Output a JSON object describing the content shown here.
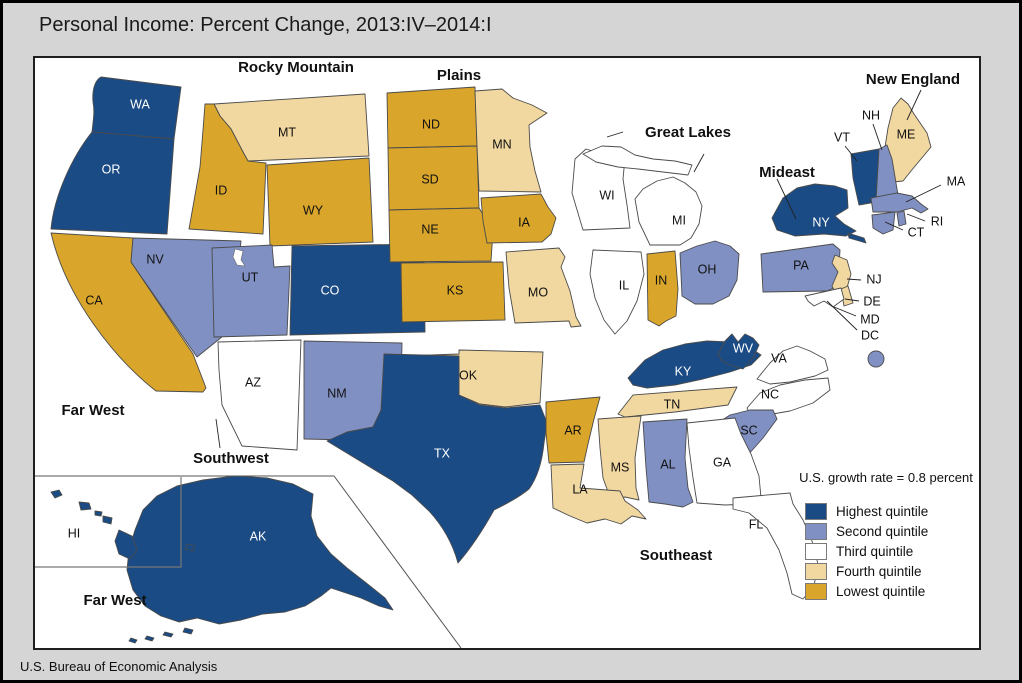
{
  "title": "Personal Income: Percent Change, 2013:IV–2014:I",
  "source": "U.S. Bureau of Economic Analysis",
  "legend": {
    "note": "U.S. growth rate = 0.8 percent",
    "items": [
      {
        "label": "Highest quintile",
        "quintile": "highest",
        "color": "#1A4B85"
      },
      {
        "label": "Second quintile",
        "quintile": "second",
        "color": "#8090C2"
      },
      {
        "label": "Third quintile",
        "quintile": "third",
        "color": "#FFFFFF"
      },
      {
        "label": "Fourth quintile",
        "quintile": "fourth",
        "color": "#F1D7A0"
      },
      {
        "label": "Lowest quintile",
        "quintile": "lowest",
        "color": "#D9A62B"
      }
    ]
  },
  "map": {
    "region_labels": [
      {
        "id": "rocky-mountain",
        "name": "Rocky Mountain"
      },
      {
        "id": "plains",
        "name": "Plains"
      },
      {
        "id": "new-england",
        "name": "New England"
      },
      {
        "id": "great-lakes",
        "name": "Great Lakes"
      },
      {
        "id": "mideast",
        "name": "Mideast"
      },
      {
        "id": "far-west",
        "name": "Far West"
      },
      {
        "id": "southwest",
        "name": "Southwest"
      },
      {
        "id": "southeast",
        "name": "Southeast"
      },
      {
        "id": "far-west-inset",
        "name": "Far West"
      }
    ],
    "states": [
      {
        "code": "WA",
        "quintile": "highest"
      },
      {
        "code": "OR",
        "quintile": "highest"
      },
      {
        "code": "CA",
        "quintile": "lowest"
      },
      {
        "code": "NV",
        "quintile": "second"
      },
      {
        "code": "MT",
        "quintile": "fourth"
      },
      {
        "code": "ID",
        "quintile": "lowest"
      },
      {
        "code": "WY",
        "quintile": "lowest"
      },
      {
        "code": "UT",
        "quintile": "second"
      },
      {
        "code": "CO",
        "quintile": "highest"
      },
      {
        "code": "AZ",
        "quintile": "third"
      },
      {
        "code": "NM",
        "quintile": "second"
      },
      {
        "code": "ND",
        "quintile": "lowest"
      },
      {
        "code": "SD",
        "quintile": "lowest"
      },
      {
        "code": "NE",
        "quintile": "lowest"
      },
      {
        "code": "KS",
        "quintile": "lowest"
      },
      {
        "code": "MN",
        "quintile": "fourth"
      },
      {
        "code": "IA",
        "quintile": "lowest"
      },
      {
        "code": "MO",
        "quintile": "fourth"
      },
      {
        "code": "OK",
        "quintile": "fourth"
      },
      {
        "code": "TX",
        "quintile": "highest"
      },
      {
        "code": "WI",
        "quintile": "third"
      },
      {
        "code": "MI",
        "quintile": "third"
      },
      {
        "code": "IL",
        "quintile": "third"
      },
      {
        "code": "IN",
        "quintile": "lowest"
      },
      {
        "code": "OH",
        "quintile": "second"
      },
      {
        "code": "KY",
        "quintile": "highest"
      },
      {
        "code": "WV",
        "quintile": "highest"
      },
      {
        "code": "TN",
        "quintile": "fourth"
      },
      {
        "code": "VA",
        "quintile": "third"
      },
      {
        "code": "NC",
        "quintile": "third"
      },
      {
        "code": "SC",
        "quintile": "second"
      },
      {
        "code": "GA",
        "quintile": "third"
      },
      {
        "code": "AL",
        "quintile": "second"
      },
      {
        "code": "MS",
        "quintile": "fourth"
      },
      {
        "code": "AR",
        "quintile": "lowest"
      },
      {
        "code": "LA",
        "quintile": "fourth"
      },
      {
        "code": "FL",
        "quintile": "third"
      },
      {
        "code": "NY",
        "quintile": "highest"
      },
      {
        "code": "PA",
        "quintile": "second"
      },
      {
        "code": "NJ",
        "quintile": "fourth"
      },
      {
        "code": "DE",
        "quintile": "fourth"
      },
      {
        "code": "MD",
        "quintile": "third"
      },
      {
        "code": "DC",
        "quintile": "second"
      },
      {
        "code": "ME",
        "quintile": "fourth"
      },
      {
        "code": "VT",
        "quintile": "highest"
      },
      {
        "code": "NH",
        "quintile": "second"
      },
      {
        "code": "MA",
        "quintile": "second"
      },
      {
        "code": "CT",
        "quintile": "second"
      },
      {
        "code": "RI",
        "quintile": "second"
      },
      {
        "code": "AK",
        "quintile": "highest"
      },
      {
        "code": "HI",
        "quintile": "highest"
      }
    ]
  }
}
